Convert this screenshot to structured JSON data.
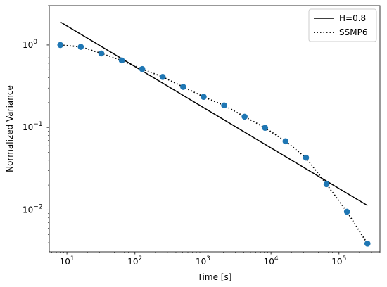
{
  "chart_data": {
    "type": "line",
    "xlabel": "Time [s]",
    "ylabel": "Normalized Variance",
    "xscale": "log",
    "yscale": "log",
    "xlim": [
      5.5,
      400000
    ],
    "ylim": [
      0.0031,
      3.0
    ],
    "grid": false,
    "legend_position": "top-right",
    "x_ticks": [
      {
        "value": 10,
        "base": "10",
        "exp": "1"
      },
      {
        "value": 100,
        "base": "10",
        "exp": "2"
      },
      {
        "value": 1000,
        "base": "10",
        "exp": "3"
      },
      {
        "value": 10000,
        "base": "10",
        "exp": "4"
      },
      {
        "value": 100000,
        "base": "10",
        "exp": "5"
      }
    ],
    "y_ticks": [
      {
        "value": 0.01,
        "base": "10",
        "exp": "−2"
      },
      {
        "value": 0.1,
        "base": "10",
        "exp": "−1"
      },
      {
        "value": 1,
        "base": "10",
        "exp": "0"
      }
    ],
    "series": [
      {
        "name": "H=0.8",
        "style": "solid",
        "color": "#000000",
        "x": [
          8,
          262144
        ],
        "y": [
          1.9,
          0.0113
        ]
      },
      {
        "name": "SSMP6",
        "style": "dotted",
        "color": "#000000",
        "marker_color": "#1f77b4",
        "x": [
          8,
          16,
          32,
          64,
          128,
          256,
          512,
          1024,
          2048,
          4096,
          8192,
          16384,
          32768,
          65536,
          131072,
          262144
        ],
        "y": [
          1.0,
          0.95,
          0.79,
          0.65,
          0.51,
          0.41,
          0.31,
          0.235,
          0.185,
          0.135,
          0.099,
          0.068,
          0.043,
          0.0205,
          0.0095,
          0.0039
        ]
      }
    ]
  }
}
